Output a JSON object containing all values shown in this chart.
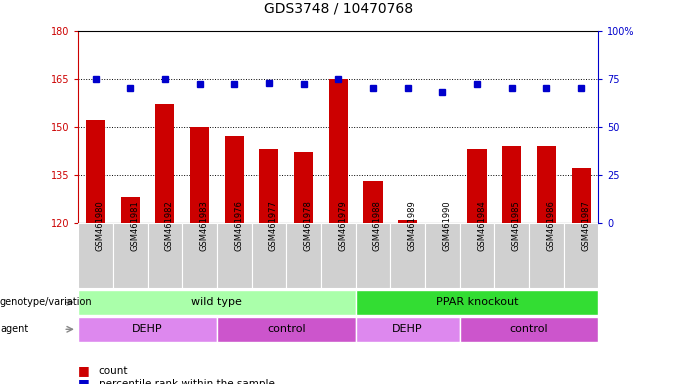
{
  "title": "GDS3748 / 10470768",
  "samples": [
    "GSM461980",
    "GSM461981",
    "GSM461982",
    "GSM461983",
    "GSM461976",
    "GSM461977",
    "GSM461978",
    "GSM461979",
    "GSM461988",
    "GSM461989",
    "GSM461990",
    "GSM461984",
    "GSM461985",
    "GSM461986",
    "GSM461987"
  ],
  "counts": [
    152,
    128,
    157,
    150,
    147,
    143,
    142,
    165,
    133,
    121,
    120,
    143,
    144,
    144,
    137
  ],
  "percentile_ranks": [
    75,
    70,
    75,
    72,
    72,
    73,
    72,
    75,
    70,
    70,
    68,
    72,
    70,
    70,
    70
  ],
  "ylim_left": [
    120,
    180
  ],
  "ylim_right": [
    0,
    100
  ],
  "yticks_left": [
    120,
    135,
    150,
    165,
    180
  ],
  "yticks_right": [
    0,
    25,
    50,
    75,
    100
  ],
  "bar_color": "#cc0000",
  "dot_color": "#0000cc",
  "bg_cell_color": "#d0d0d0",
  "genotype_wt_color": "#aaffaa",
  "genotype_ko_color": "#33dd33",
  "agent_dehp_color": "#dd88ee",
  "agent_ctrl_color": "#cc55cc",
  "genotype_split": 8,
  "agent_splits": [
    4,
    8,
    11,
    15
  ],
  "tick_fontsize": 7,
  "title_fontsize": 10,
  "sample_fontsize": 6,
  "annot_fontsize": 8
}
